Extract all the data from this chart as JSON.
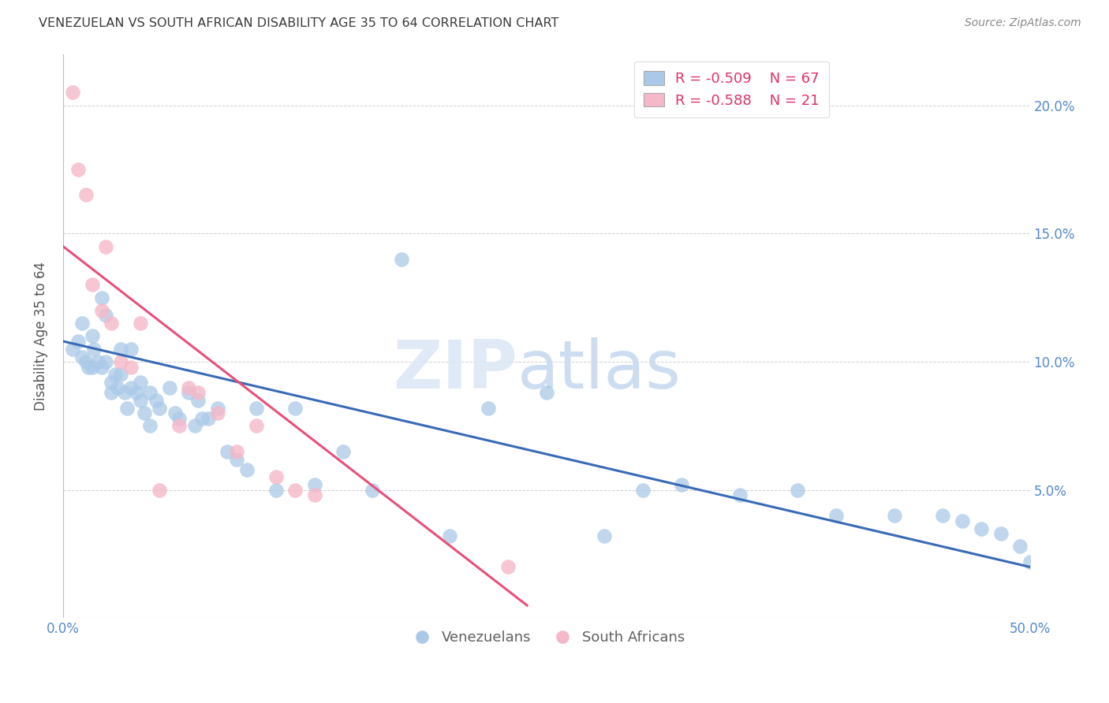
{
  "title": "VENEZUELAN VS SOUTH AFRICAN DISABILITY AGE 35 TO 64 CORRELATION CHART",
  "source": "Source: ZipAtlas.com",
  "ylabel": "Disability Age 35 to 64",
  "xlim": [
    0.0,
    0.5
  ],
  "ylim": [
    0.0,
    0.22
  ],
  "yticks": [
    0.05,
    0.1,
    0.15,
    0.2
  ],
  "yticklabels": [
    "5.0%",
    "10.0%",
    "15.0%",
    "20.0%"
  ],
  "xtick_positions": [
    0.0,
    0.5
  ],
  "xticklabels": [
    "0.0%",
    "50.0%"
  ],
  "watermark_zip": "ZIP",
  "watermark_atlas": "atlas",
  "legend_blue_r": "-0.509",
  "legend_blue_n": "67",
  "legend_pink_r": "-0.588",
  "legend_pink_n": "21",
  "blue_color": "#aac9e8",
  "pink_color": "#f5b8c8",
  "blue_line_color": "#3a6ab5",
  "pink_line_color": "#e8507a",
  "title_color": "#3a3a3a",
  "source_color": "#888888",
  "axis_label_color": "#555555",
  "tick_color": "#5588cc",
  "grid_color": "#d0d0d0",
  "legend_r_color": "#dd3366",
  "legend_n_color": "#3366cc",
  "background_color": "#ffffff",
  "venezuelan_x": [
    0.005,
    0.008,
    0.01,
    0.01,
    0.012,
    0.013,
    0.015,
    0.015,
    0.016,
    0.018,
    0.02,
    0.02,
    0.022,
    0.022,
    0.025,
    0.025,
    0.027,
    0.028,
    0.03,
    0.03,
    0.032,
    0.033,
    0.035,
    0.035,
    0.038,
    0.04,
    0.04,
    0.042,
    0.045,
    0.045,
    0.048,
    0.05,
    0.055,
    0.058,
    0.06,
    0.065,
    0.068,
    0.07,
    0.072,
    0.075,
    0.08,
    0.085,
    0.09,
    0.095,
    0.1,
    0.11,
    0.12,
    0.13,
    0.145,
    0.16,
    0.175,
    0.2,
    0.22,
    0.25,
    0.28,
    0.3,
    0.32,
    0.35,
    0.38,
    0.4,
    0.43,
    0.455,
    0.465,
    0.475,
    0.485,
    0.495,
    0.5
  ],
  "venezuelan_y": [
    0.105,
    0.108,
    0.102,
    0.115,
    0.1,
    0.098,
    0.11,
    0.098,
    0.105,
    0.1,
    0.125,
    0.098,
    0.118,
    0.1,
    0.092,
    0.088,
    0.095,
    0.09,
    0.105,
    0.095,
    0.088,
    0.082,
    0.105,
    0.09,
    0.088,
    0.085,
    0.092,
    0.08,
    0.088,
    0.075,
    0.085,
    0.082,
    0.09,
    0.08,
    0.078,
    0.088,
    0.075,
    0.085,
    0.078,
    0.078,
    0.082,
    0.065,
    0.062,
    0.058,
    0.082,
    0.05,
    0.082,
    0.052,
    0.065,
    0.05,
    0.14,
    0.032,
    0.082,
    0.088,
    0.032,
    0.05,
    0.052,
    0.048,
    0.05,
    0.04,
    0.04,
    0.04,
    0.038,
    0.035,
    0.033,
    0.028,
    0.022
  ],
  "southafrican_x": [
    0.005,
    0.008,
    0.012,
    0.015,
    0.02,
    0.022,
    0.025,
    0.03,
    0.035,
    0.04,
    0.05,
    0.06,
    0.065,
    0.07,
    0.08,
    0.09,
    0.1,
    0.11,
    0.12,
    0.13,
    0.23
  ],
  "southafrican_y": [
    0.205,
    0.175,
    0.165,
    0.13,
    0.12,
    0.145,
    0.115,
    0.1,
    0.098,
    0.115,
    0.05,
    0.075,
    0.09,
    0.088,
    0.08,
    0.065,
    0.075,
    0.055,
    0.05,
    0.048,
    0.02
  ],
  "blue_line_x": [
    0.0,
    0.5
  ],
  "blue_line_y": [
    0.108,
    0.02
  ],
  "pink_line_x": [
    0.0,
    0.24
  ],
  "pink_line_y": [
    0.145,
    0.005
  ]
}
